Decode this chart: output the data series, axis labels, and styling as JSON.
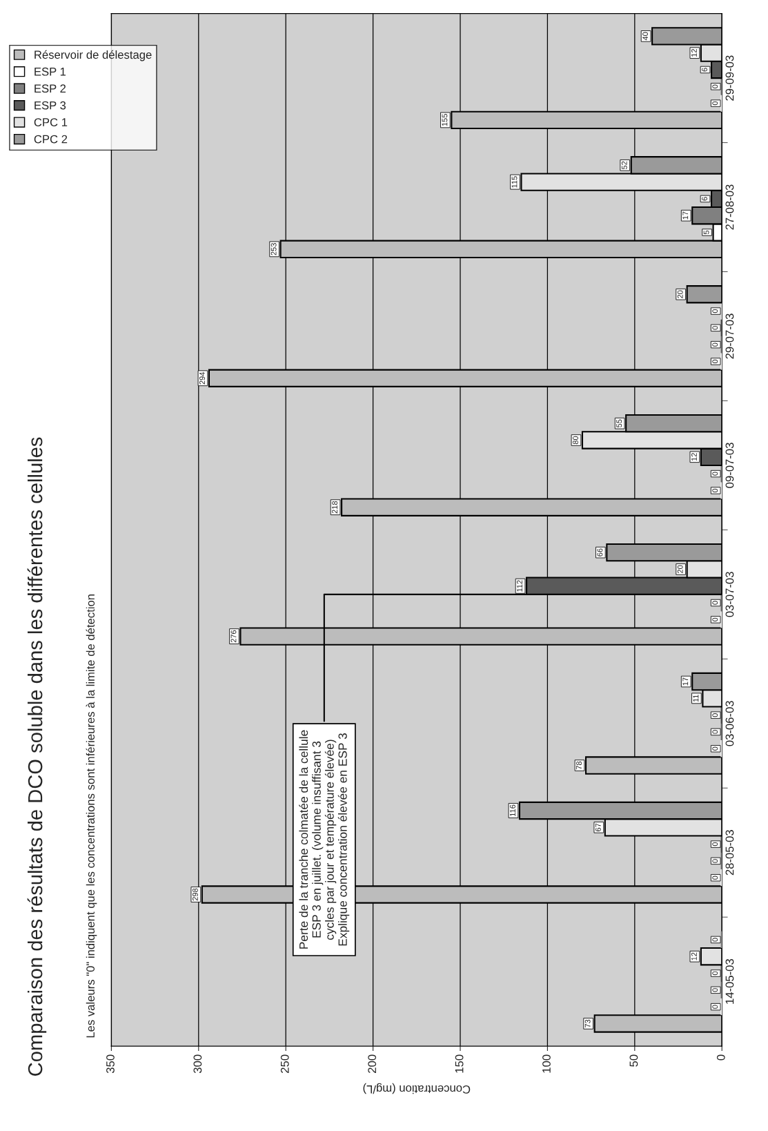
{
  "chart_data": {
    "type": "bar",
    "orientation": "horizontal",
    "title": "Comparaison des résultats de DCO soluble dans les différentes cellules",
    "subtitle": "Les valeurs \"0\" indiquent que les concentrations sont inférieures à la limite de détection",
    "xlabel": "Concentration (mg/L)",
    "categories": [
      "29-09-03",
      "27-08-03",
      "29-07-03",
      "09-07-03",
      "03-07-03",
      "03-06-03",
      "28-05-03",
      "14-05-03"
    ],
    "series": [
      {
        "name": "Réservoir de délestage",
        "color": "#bcbcbc",
        "values": [
          155,
          253,
          294,
          218,
          276,
          78,
          298,
          73
        ]
      },
      {
        "name": "ESP 1",
        "color": "#ffffff",
        "values": [
          0,
          5,
          0,
          0,
          0,
          0,
          0,
          0
        ]
      },
      {
        "name": "ESP 2",
        "color": "#808080",
        "values": [
          0,
          17,
          0,
          0,
          0,
          0,
          0,
          0
        ]
      },
      {
        "name": "ESP 3",
        "color": "#5a5a5a",
        "values": [
          6,
          6,
          0,
          12,
          112,
          0,
          0,
          0
        ]
      },
      {
        "name": "CPC 1",
        "color": "#e2e2e2",
        "values": [
          12,
          115,
          0,
          80,
          20,
          11,
          67,
          12
        ]
      },
      {
        "name": "CPC 2",
        "color": "#9a9a9a",
        "values": [
          40,
          52,
          20,
          55,
          66,
          17,
          116,
          0
        ]
      }
    ],
    "xlim": [
      350,
      0
    ],
    "xticks": [
      0,
      50,
      100,
      150,
      200,
      250,
      300,
      350
    ],
    "grid": "x",
    "legend": "top left",
    "data_labels": true,
    "annotations": [
      {
        "text": "Perte de la tranche colmatée de la cellule\nESP 3 en juillet. (volume insuffisant 3\ncycles par jour et température élevée)\nExplique concentration élevée en ESP 3",
        "x": 112,
        "y": "03-07-03"
      }
    ]
  }
}
